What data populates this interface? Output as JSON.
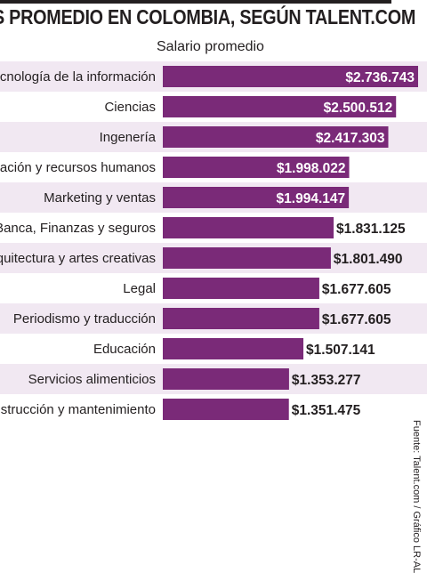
{
  "title": "S PROMEDIO EN COLOMBIA, SEGÚN TALENT.COM",
  "source": "Fuente: Talent.com / Gráfico LR-AL",
  "colors": {
    "bar": "#7a2a78",
    "row_band": "#f1e8f2",
    "text": "#231f20",
    "inside_label": "#ffffff",
    "outside_label": "#231f20"
  },
  "chart_data": {
    "type": "bar",
    "orientation": "horizontal",
    "title": "S PROMEDIO EN COLOMBIA, SEGÚN TALENT.COM",
    "series": [
      {
        "name": "Salario promedio",
        "values": [
          2736743,
          2500512,
          2417303,
          1998022,
          1994147,
          1831125,
          1801490,
          1677605,
          1677605,
          1507141,
          1353277,
          1351475
        ],
        "labels": [
          "$2.736.743",
          "$2.500.512",
          "$2.417.303",
          "$1.998.022",
          "$1.994.147",
          "$1.831.125",
          "$1.801.490",
          "$1.677.605",
          "$1.677.605",
          "$1.507.141",
          "$1.353.277",
          "$1.351.475"
        ]
      }
    ],
    "categories": [
      "Tecnología de la información",
      "Ciencias",
      "Ingenería",
      "Administración y recursos humanos",
      "Marketing y ventas",
      "Banca, Finanzas y seguros",
      "Arquitectura y artes creativas",
      "Legal",
      "Periodismo y traducción",
      "Educación",
      "Servicios alimenticios",
      "Construcción y mantenimiento"
    ],
    "xlabel": "",
    "ylabel": "",
    "grid": false,
    "value_labels_inside_threshold": 1990000
  }
}
